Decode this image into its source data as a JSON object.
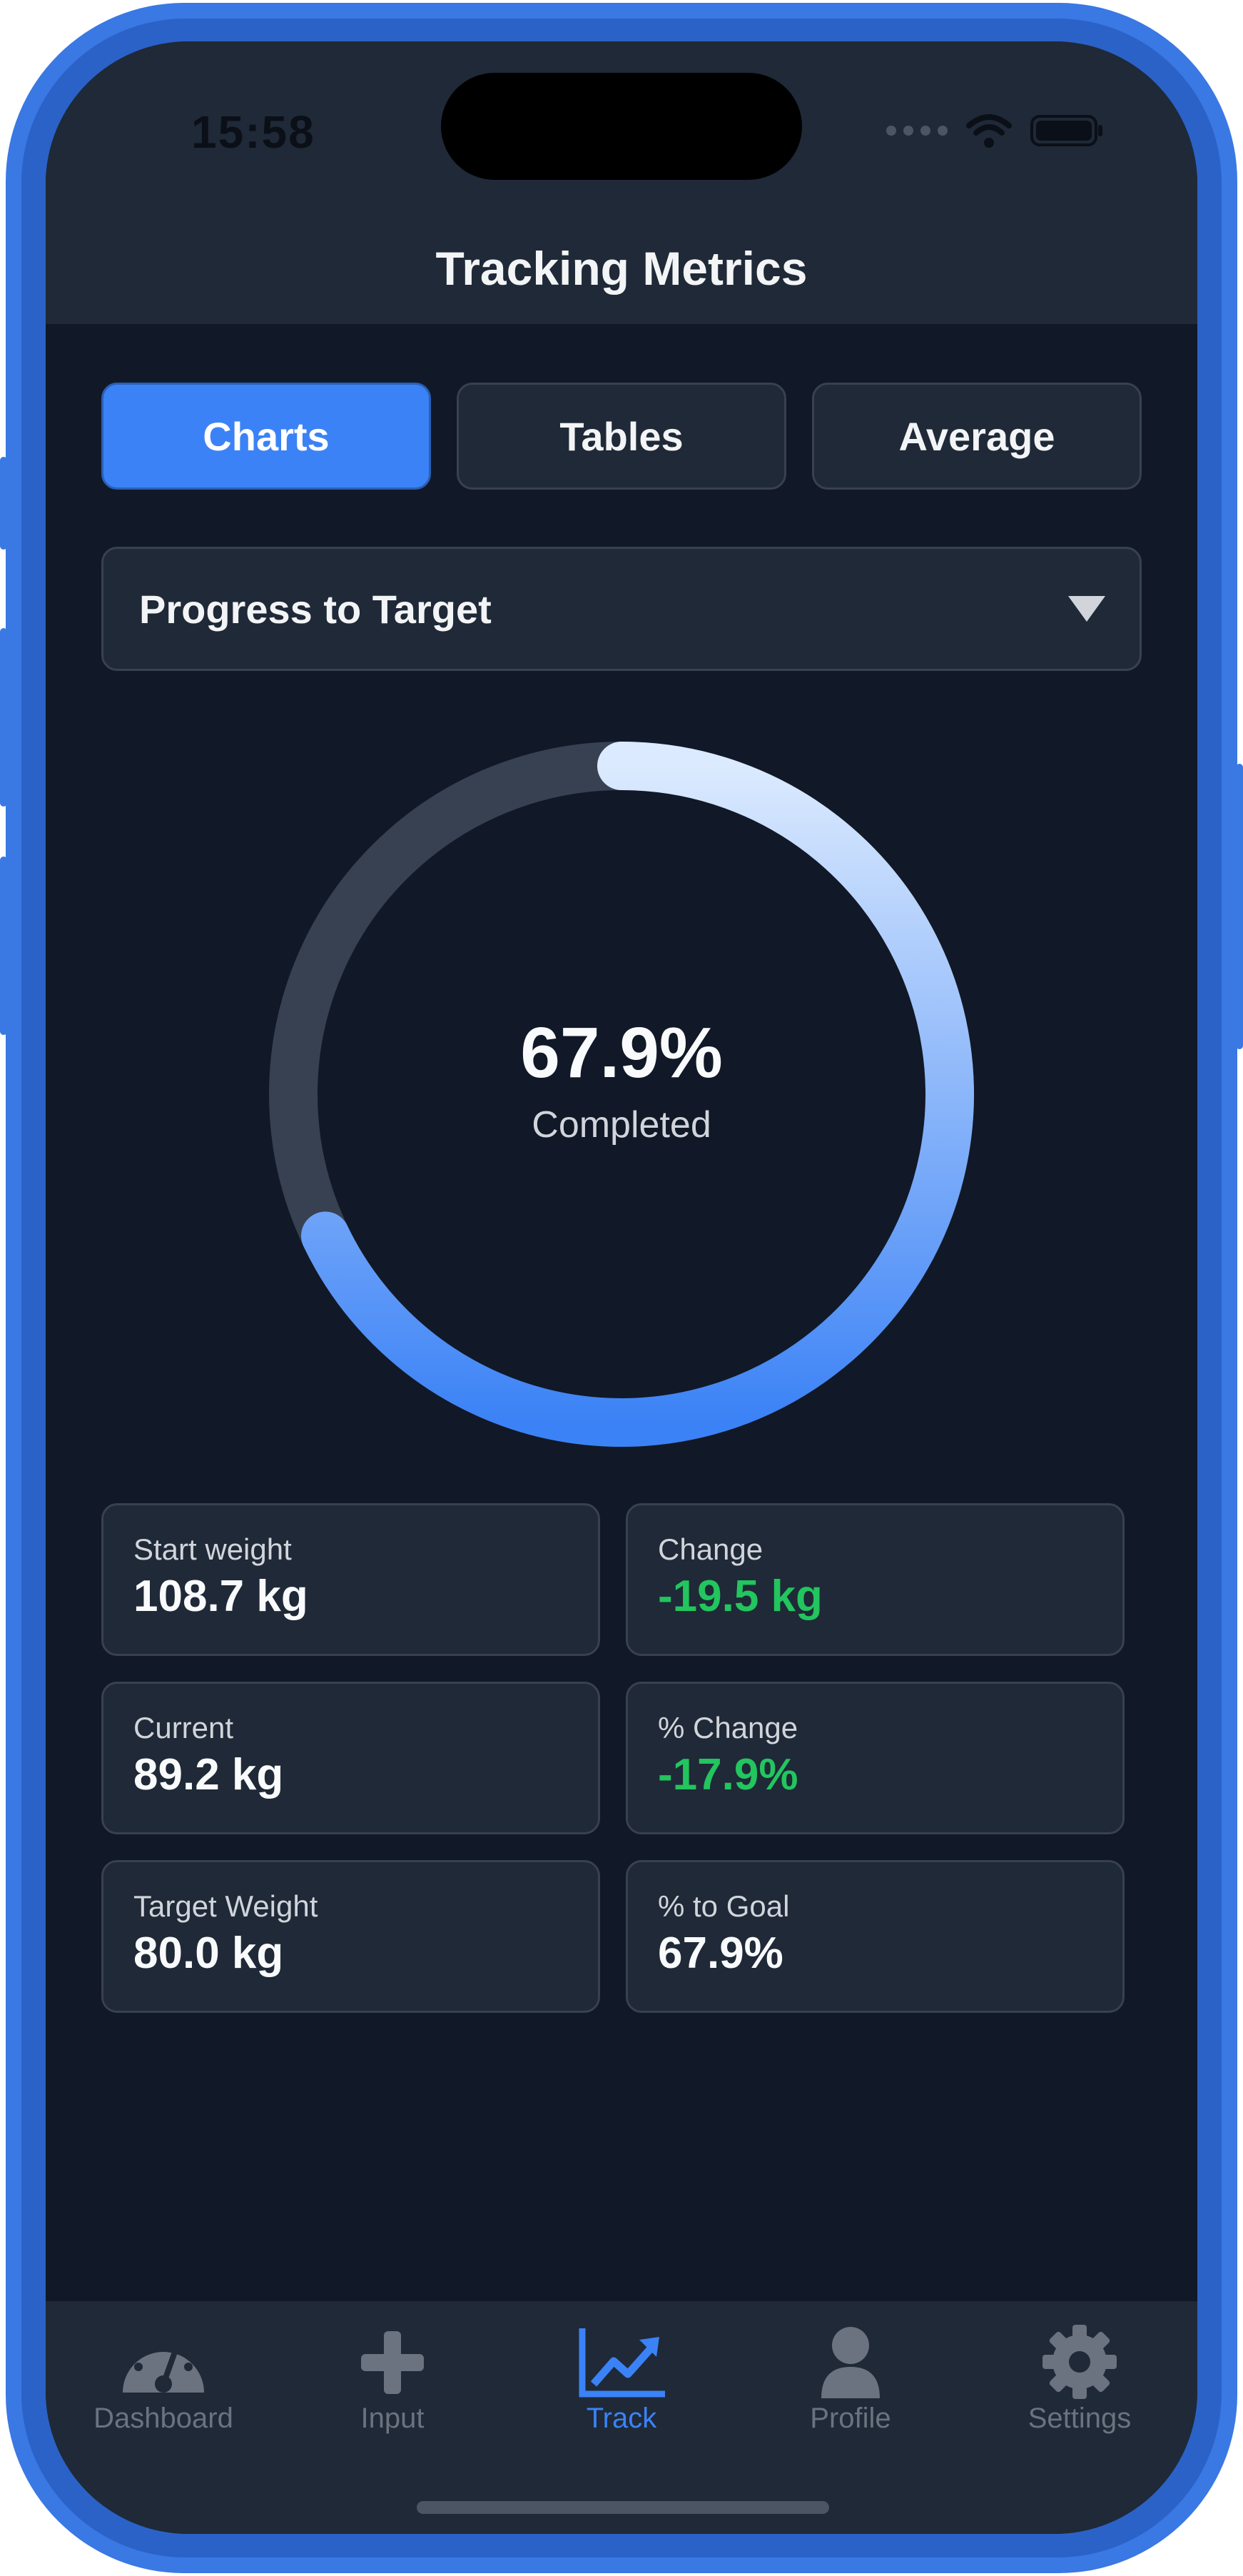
{
  "status_bar": {
    "time": "15:58"
  },
  "header": {
    "title": "Tracking Metrics"
  },
  "tabs": [
    {
      "label": "Charts",
      "active": true
    },
    {
      "label": "Tables",
      "active": false
    },
    {
      "label": "Average",
      "active": false
    }
  ],
  "dropdown": {
    "selected": "Progress to Target",
    "icon": "chevron-down-icon"
  },
  "progress": {
    "percent_text": "67.9%",
    "caption": "Completed",
    "fraction": 0.679
  },
  "stats": [
    {
      "label": "Start weight",
      "value": "108.7 kg",
      "positive": false
    },
    {
      "label": "Change",
      "value": "-19.5 kg",
      "positive": true
    },
    {
      "label": "Current",
      "value": "89.2 kg",
      "positive": false
    },
    {
      "label": "% Change",
      "value": "-17.9%",
      "positive": true
    },
    {
      "label": "Target Weight",
      "value": "80.0 kg",
      "positive": false
    },
    {
      "label": "% to Goal",
      "value": "67.9%",
      "positive": false
    }
  ],
  "nav": [
    {
      "label": "Dashboard",
      "icon": "dashboard-gauge-icon",
      "active": false
    },
    {
      "label": "Input",
      "icon": "plus-icon",
      "active": false
    },
    {
      "label": "Track",
      "icon": "chart-line-icon",
      "active": true
    },
    {
      "label": "Profile",
      "icon": "user-icon",
      "active": false
    },
    {
      "label": "Settings",
      "icon": "gear-icon",
      "active": false
    }
  ],
  "colors": {
    "accent": "#3b82f6",
    "background": "#111827",
    "surface": "#1f2937",
    "positive": "#22c55e",
    "frame": "#3a78e4"
  }
}
